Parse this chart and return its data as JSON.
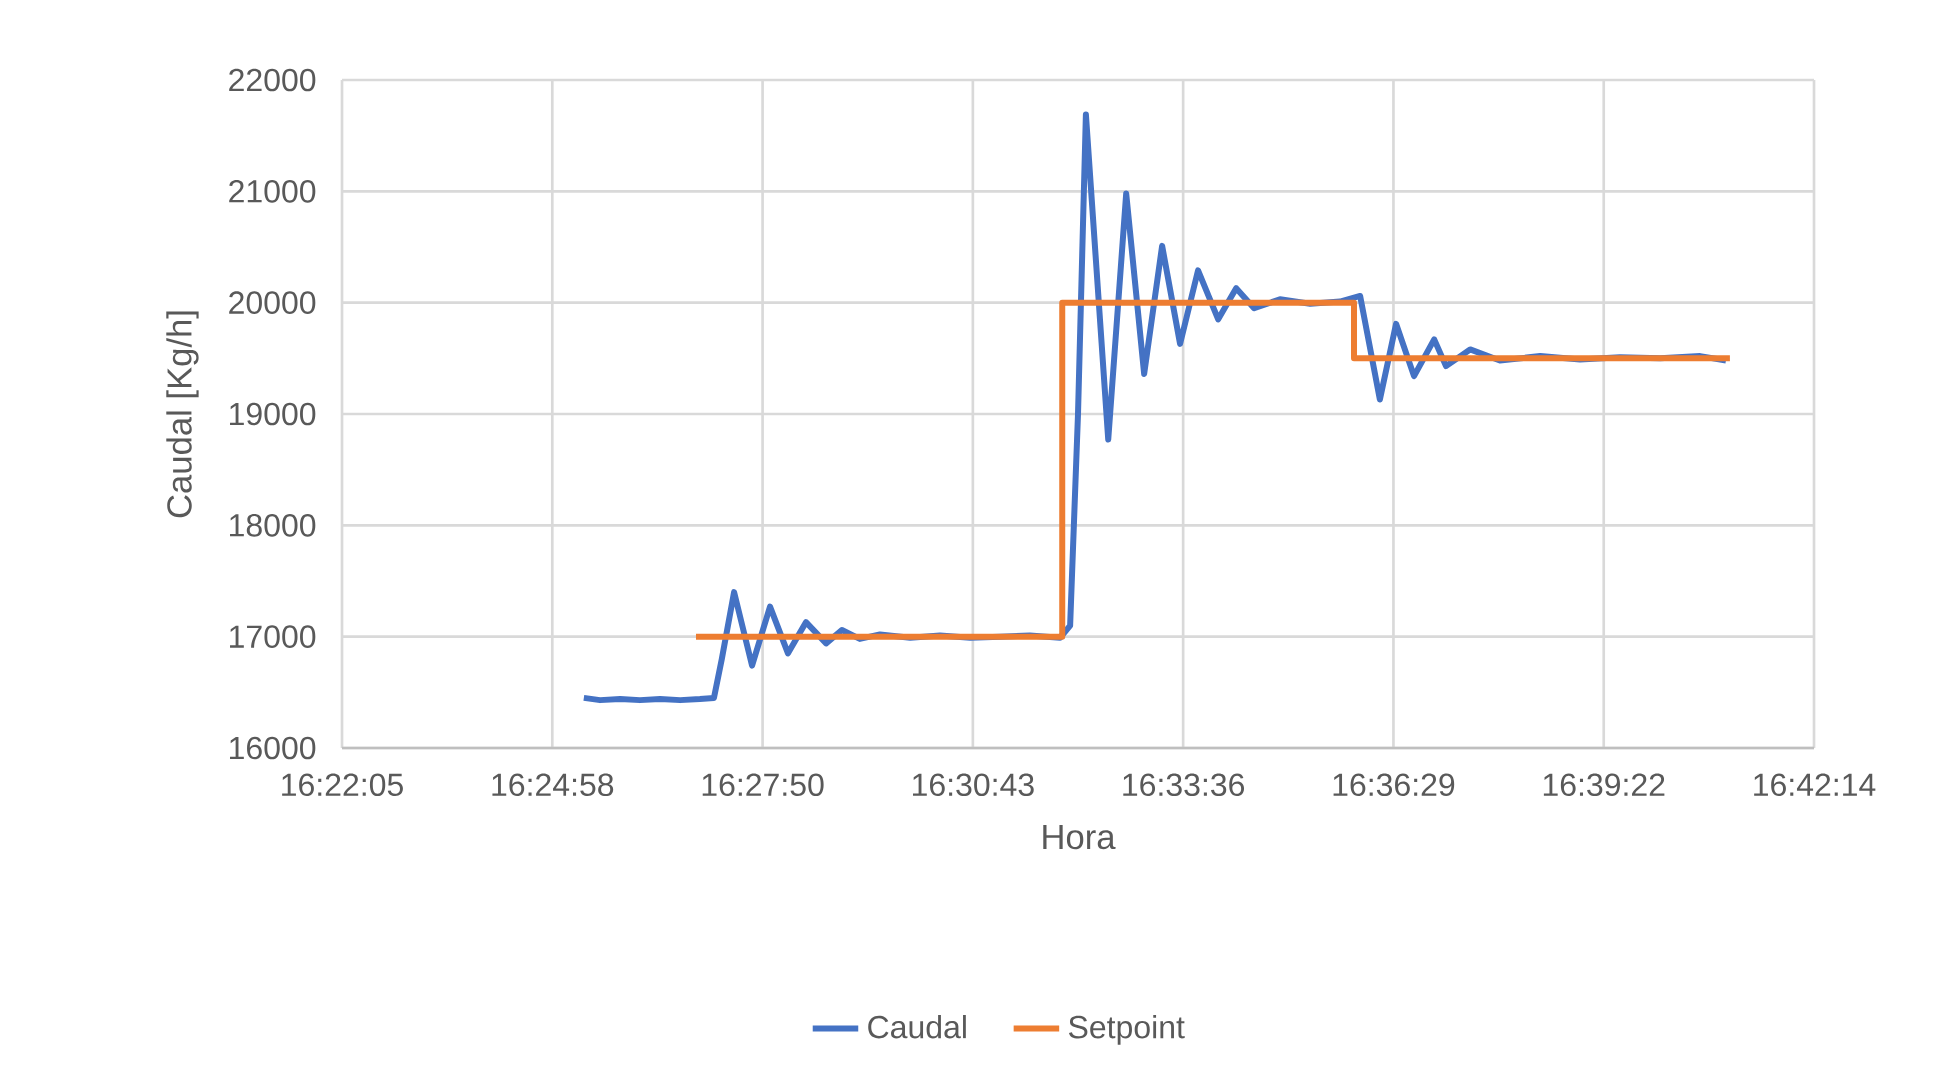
{
  "chart_data": {
    "type": "line",
    "xlabel": "Hora",
    "ylabel": "Caudal [Kg/h]",
    "xlim": [
      16.368,
      16.704
    ],
    "ylim": [
      16000,
      22000
    ],
    "xticks": [
      {
        "value": 16.368,
        "label": "16:22:05"
      },
      {
        "value": 16.416,
        "label": "16:24:58"
      },
      {
        "value": 16.464,
        "label": "16:27:50"
      },
      {
        "value": 16.512,
        "label": "16:30:43"
      },
      {
        "value": 16.56,
        "label": "16:33:36"
      },
      {
        "value": 16.608,
        "label": "16:36:29"
      },
      {
        "value": 16.656,
        "label": "16:39:22"
      },
      {
        "value": 16.704,
        "label": "16:42:14"
      }
    ],
    "yticks": [
      16000,
      17000,
      18000,
      19000,
      20000,
      21000,
      22000
    ],
    "grid": true,
    "legend": "bottom",
    "marker": "none",
    "line_style": "solid",
    "series": [
      {
        "name": "Caudal",
        "color": "#4472c4",
        "x": [
          16.4232,
          16.4269,
          16.4315,
          16.436,
          16.4406,
          16.4452,
          16.4497,
          16.4529,
          16.4547,
          16.4575,
          16.4616,
          16.4657,
          16.4698,
          16.4739,
          16.4785,
          16.4821,
          16.4862,
          16.4908,
          16.4977,
          16.5045,
          16.5114,
          16.5182,
          16.525,
          16.5319,
          16.5342,
          16.536,
          16.5378,
          16.5429,
          16.547,
          16.5511,
          16.5552,
          16.5593,
          16.5634,
          16.568,
          16.5721,
          16.5762,
          16.5821,
          16.589,
          16.5958,
          16.6004,
          16.6049,
          16.6086,
          16.6127,
          16.6173,
          16.62,
          16.6255,
          16.6323,
          16.6415,
          16.6506,
          16.6597,
          16.6689,
          16.678,
          16.6839
        ],
        "values": [
          16450,
          16430,
          16440,
          16430,
          16440,
          16430,
          16440,
          16450,
          16800,
          17400,
          16740,
          17270,
          16850,
          17130,
          16940,
          17060,
          16980,
          17020,
          16990,
          17010,
          16990,
          17000,
          17010,
          16990,
          17100,
          19000,
          21690,
          18770,
          20980,
          19360,
          20510,
          19630,
          20290,
          19850,
          20130,
          19950,
          20030,
          19990,
          20010,
          20060,
          19130,
          19810,
          19340,
          19670,
          19430,
          19580,
          19480,
          19520,
          19490,
          19510,
          19500,
          19520,
          19480
        ]
      },
      {
        "name": "Setpoint",
        "color": "#ed7d31",
        "x": [
          16.4488,
          16.5324,
          16.5324,
          16.599,
          16.599,
          16.6848
        ],
        "values": [
          17000,
          17000,
          20000,
          20000,
          19500,
          19500
        ]
      }
    ]
  }
}
